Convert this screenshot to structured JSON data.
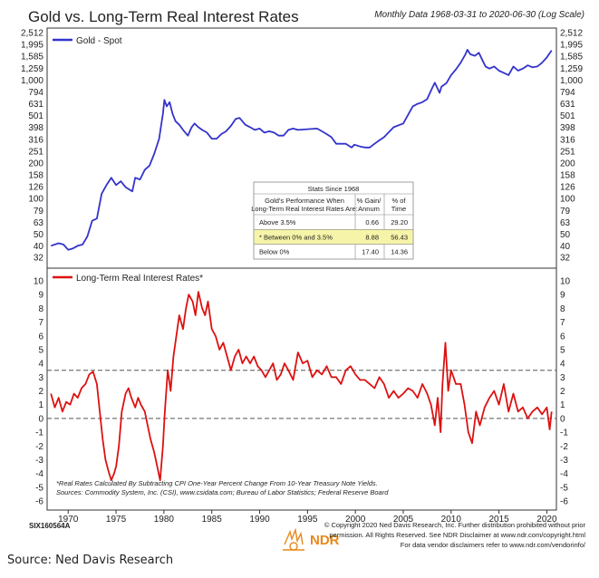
{
  "title": "Gold vs. Long-Term Real Interest Rates",
  "subtitle": "Monthly Data 1968-03-31 to 2020-06-30 (Log Scale)",
  "chart_data": [
    {
      "type": "line",
      "scale": "log",
      "series": [
        {
          "name": "Gold - Spot",
          "color": "#3333cc",
          "x": [
            1968.2,
            1969.0,
            1969.5,
            1970.0,
            1970.5,
            1971.0,
            1971.5,
            1972.0,
            1972.5,
            1973.0,
            1973.5,
            1974.0,
            1974.5,
            1975.0,
            1975.5,
            1976.0,
            1976.7,
            1977.0,
            1977.5,
            1978.0,
            1978.5,
            1979.0,
            1979.5,
            1979.9,
            1980.05,
            1980.3,
            1980.6,
            1980.9,
            1981.2,
            1981.6,
            1982.0,
            1982.5,
            1982.9,
            1983.2,
            1983.6,
            1984.0,
            1984.5,
            1985.0,
            1985.5,
            1986.0,
            1986.5,
            1987.0,
            1987.5,
            1987.9,
            1988.5,
            1989.0,
            1989.5,
            1990.0,
            1990.5,
            1991.0,
            1991.5,
            1992.0,
            1992.5,
            1993.0,
            1993.5,
            1994.0,
            1995.0,
            1996.0,
            1996.5,
            1997.0,
            1997.5,
            1998.0,
            1998.5,
            1999.0,
            1999.6,
            1999.9,
            2000.5,
            2001.0,
            2001.5,
            2002.0,
            2002.5,
            2003.0,
            2004.0,
            2005.0,
            2006.0,
            2006.5,
            2007.0,
            2007.5,
            2008.0,
            2008.3,
            2008.8,
            2009.0,
            2009.5,
            2010.0,
            2010.5,
            2011.0,
            2011.5,
            2011.7,
            2012.0,
            2012.5,
            2012.9,
            2013.3,
            2013.6,
            2014.0,
            2014.5,
            2015.0,
            2015.5,
            2016.0,
            2016.5,
            2017.0,
            2017.5,
            2018.0,
            2018.5,
            2019.0,
            2019.5,
            2020.0,
            2020.5
          ],
          "y": [
            40,
            42,
            41,
            37,
            38,
            40,
            41,
            48,
            65,
            68,
            110,
            130,
            150,
            130,
            140,
            125,
            115,
            150,
            145,
            175,
            190,
            240,
            320,
            520,
            680,
            600,
            650,
            520,
            450,
            420,
            380,
            340,
            400,
            430,
            400,
            380,
            360,
            320,
            320,
            350,
            370,
            410,
            470,
            480,
            420,
            400,
            380,
            390,
            360,
            370,
            360,
            340,
            340,
            380,
            390,
            380,
            385,
            390,
            370,
            350,
            330,
            290,
            290,
            290,
            270,
            285,
            275,
            270,
            270,
            290,
            310,
            330,
            400,
            430,
            600,
            630,
            650,
            690,
            850,
            950,
            780,
            880,
            940,
            1100,
            1230,
            1400,
            1650,
            1800,
            1650,
            1600,
            1700,
            1450,
            1300,
            1250,
            1300,
            1200,
            1150,
            1100,
            1300,
            1200,
            1250,
            1330,
            1280,
            1300,
            1400,
            1550,
            1780
          ]
        }
      ],
      "y_ticks": [
        "2,512",
        "1,995",
        "1,585",
        "1,259",
        "1,000",
        "794",
        "631",
        "501",
        "398",
        "316",
        "251",
        "200",
        "158",
        "126",
        "100",
        "79",
        "63",
        "50",
        "40",
        "32"
      ],
      "y_tick_values": [
        2512,
        1995,
        1585,
        1259,
        1000,
        794,
        631,
        501,
        398,
        316,
        251,
        200,
        158,
        126,
        100,
        79,
        63,
        50,
        40,
        32
      ],
      "ylim": [
        30,
        2600
      ]
    },
    {
      "type": "line",
      "series": [
        {
          "name": "Long-Term Real Interest Rates*",
          "color": "#dd1111",
          "x": [
            1968.2,
            1968.6,
            1969.0,
            1969.4,
            1969.8,
            1970.2,
            1970.6,
            1971.0,
            1971.4,
            1971.8,
            1972.2,
            1972.6,
            1973.0,
            1973.3,
            1973.6,
            1973.9,
            1974.2,
            1974.5,
            1974.8,
            1975.0,
            1975.3,
            1975.6,
            1976.0,
            1976.3,
            1976.6,
            1977.0,
            1977.3,
            1977.6,
            1978.0,
            1978.3,
            1978.6,
            1979.0,
            1979.3,
            1979.6,
            1979.9,
            1980.1,
            1980.4,
            1980.7,
            1981.0,
            1981.3,
            1981.6,
            1982.0,
            1982.3,
            1982.6,
            1983.0,
            1983.3,
            1983.6,
            1984.0,
            1984.3,
            1984.6,
            1985.0,
            1985.4,
            1985.8,
            1986.2,
            1986.6,
            1987.0,
            1987.4,
            1987.8,
            1988.2,
            1988.6,
            1989.0,
            1989.4,
            1989.8,
            1990.2,
            1990.6,
            1991.0,
            1991.4,
            1991.8,
            1992.2,
            1992.6,
            1993.0,
            1993.5,
            1994.0,
            1994.5,
            1995.0,
            1995.5,
            1996.0,
            1996.5,
            1997.0,
            1997.5,
            1998.0,
            1998.5,
            1999.0,
            1999.5,
            2000.0,
            2000.5,
            2001.0,
            2001.5,
            2002.0,
            2002.5,
            2003.0,
            2003.5,
            2004.0,
            2004.5,
            2005.0,
            2005.5,
            2006.0,
            2006.5,
            2007.0,
            2007.5,
            2007.9,
            2008.3,
            2008.6,
            2008.9,
            2009.1,
            2009.4,
            2009.7,
            2010.0,
            2010.5,
            2011.0,
            2011.4,
            2011.8,
            2012.2,
            2012.6,
            2013.0,
            2013.5,
            2014.0,
            2014.5,
            2015.0,
            2015.5,
            2016.0,
            2016.5,
            2017.0,
            2017.5,
            2018.0,
            2018.5,
            2019.0,
            2019.5,
            2020.0,
            2020.3,
            2020.5
          ],
          "y": [
            1.8,
            0.8,
            1.5,
            0.5,
            1.2,
            1.0,
            1.8,
            1.5,
            2.2,
            2.5,
            3.2,
            3.4,
            2.5,
            0.5,
            -1.5,
            -3.0,
            -3.8,
            -4.5,
            -4.0,
            -3.5,
            -2.0,
            0.5,
            1.8,
            2.2,
            1.5,
            0.8,
            1.5,
            1.0,
            0.5,
            -0.5,
            -1.5,
            -2.5,
            -3.5,
            -4.5,
            -2.0,
            0.5,
            3.5,
            2.0,
            4.5,
            6.0,
            7.5,
            6.5,
            8.0,
            9.0,
            8.5,
            7.5,
            9.2,
            8.0,
            7.5,
            8.5,
            6.5,
            6.0,
            5.0,
            5.5,
            4.5,
            3.5,
            4.5,
            5.0,
            4.0,
            4.5,
            4.0,
            4.5,
            3.8,
            3.5,
            3.0,
            3.5,
            4.0,
            2.8,
            3.2,
            4.0,
            3.5,
            2.8,
            4.8,
            4.0,
            4.2,
            3.0,
            3.5,
            3.2,
            3.8,
            3.0,
            3.0,
            2.5,
            3.5,
            3.8,
            3.2,
            2.8,
            2.8,
            2.5,
            2.2,
            3.0,
            2.5,
            1.5,
            2.0,
            1.5,
            1.8,
            2.2,
            2.0,
            1.5,
            2.5,
            1.8,
            1.0,
            -0.5,
            1.5,
            -1.0,
            2.5,
            5.5,
            2.0,
            3.5,
            2.5,
            2.5,
            1.0,
            -1.0,
            -1.8,
            0.5,
            -0.5,
            0.8,
            1.5,
            2.0,
            1.0,
            2.5,
            0.5,
            1.8,
            0.5,
            0.8,
            0.0,
            0.5,
            0.8,
            0.3,
            0.8,
            -0.8,
            0.5
          ]
        }
      ],
      "y_ticks": [
        "10",
        "9",
        "8",
        "7",
        "6",
        "5",
        "4",
        "3",
        "2",
        "1",
        "0",
        "-1",
        "-2",
        "-3",
        "-4",
        "-5",
        "-6"
      ],
      "ylim": [
        -6.5,
        10.5
      ],
      "threshold_lines": [
        3.5,
        0
      ],
      "x_ticks": [
        "1970",
        "1975",
        "1980",
        "1985",
        "1990",
        "1995",
        "2000",
        "2005",
        "2010",
        "2015",
        "2020"
      ],
      "x_tick_values": [
        1970,
        1975,
        1980,
        1985,
        1990,
        1995,
        2000,
        2005,
        2010,
        2015,
        2020
      ],
      "xlim": [
        1967.8,
        2021.0
      ]
    }
  ],
  "stats_table": {
    "title": "Stats Since 1968",
    "col1_header": [
      "Gold's Performance When",
      "Long-Term Real Interest Rates Are:"
    ],
    "col2_header": [
      "% Gain/",
      "Annum"
    ],
    "col3_header": [
      "% of",
      "Time"
    ],
    "rows": [
      {
        "label": "Above 3.5%",
        "gain": "0.66",
        "time": "29.20",
        "highlight": false
      },
      {
        "label": "* Between 0% and 3.5%",
        "gain": "8.88",
        "time": "56.43",
        "highlight": true
      },
      {
        "label": "Below 0%",
        "gain": "17.40",
        "time": "14.36",
        "highlight": false
      }
    ],
    "highlight_color": "#f6f4a8"
  },
  "notes": [
    "*Real Rates Calculated By Subtracting CPI One-Year Percent Change From 10-Year Treasury Note Yields.",
    "Sources: Commodity System, Inc. (CSI), www.csidata.com; Bureau of Labor Statistics; Federal Reserve Board"
  ],
  "chart_code": "SIX160564A",
  "copyright_lines": [
    "© Copyright 2020 Ned Davis Research, Inc. Further distribution prohibited without prior",
    "permission. All Rights Reserved. See NDR Disclaimer at www.ndr.com/copyright.html",
    "For data vendor disclaimers refer to www.ndr.com/vendorinfo/"
  ],
  "logo_text": "NDR",
  "source_text": "Source: Ned Davis Research"
}
